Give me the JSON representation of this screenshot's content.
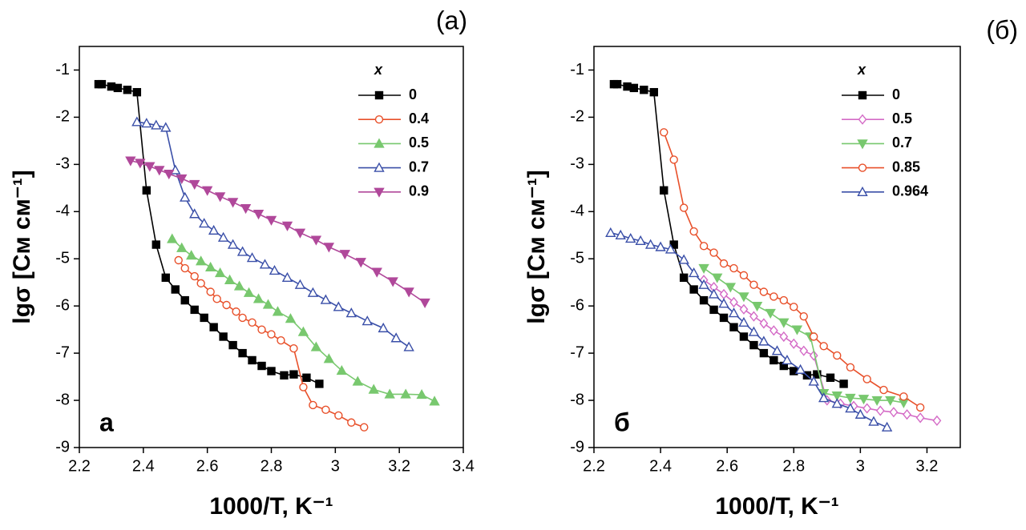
{
  "chart_data": [
    {
      "type": "line",
      "title": "(a)",
      "corner_label": "а",
      "xlabel": "1000/T, K⁻¹",
      "ylabel": "lgσ [См см⁻¹]",
      "legend_title": "x",
      "xlim": [
        2.2,
        3.4
      ],
      "ylim": [
        -9,
        -0.5
      ],
      "xticks": [
        2.2,
        2.4,
        2.6,
        2.8,
        3.0,
        3.2,
        3.4
      ],
      "yticks": [
        -9,
        -8,
        -7,
        -6,
        -5,
        -4,
        -3,
        -2,
        -1
      ],
      "series": [
        {
          "name": "0",
          "color": "#000000",
          "marker": "square",
          "filled": true,
          "x": [
            2.26,
            2.27,
            2.3,
            2.32,
            2.35,
            2.38,
            2.41,
            2.44,
            2.47,
            2.5,
            2.53,
            2.56,
            2.59,
            2.62,
            2.65,
            2.68,
            2.71,
            2.74,
            2.77,
            2.8,
            2.84,
            2.87,
            2.91,
            2.95
          ],
          "values": [
            -1.3,
            -1.3,
            -1.35,
            -1.38,
            -1.42,
            -1.47,
            -3.55,
            -4.7,
            -5.4,
            -5.65,
            -5.88,
            -6.08,
            -6.25,
            -6.45,
            -6.65,
            -6.83,
            -7.0,
            -7.15,
            -7.27,
            -7.38,
            -7.47,
            -7.45,
            -7.52,
            -7.65
          ]
        },
        {
          "name": "0.4",
          "color": "#e8502a",
          "marker": "circle",
          "filled": false,
          "x": [
            2.51,
            2.53,
            2.56,
            2.58,
            2.61,
            2.63,
            2.66,
            2.69,
            2.71,
            2.74,
            2.77,
            2.8,
            2.83,
            2.87,
            2.9,
            2.93,
            2.97,
            3.01,
            3.05,
            3.09
          ],
          "values": [
            -5.03,
            -5.2,
            -5.37,
            -5.52,
            -5.7,
            -5.85,
            -5.98,
            -6.12,
            -6.25,
            -6.35,
            -6.5,
            -6.6,
            -6.73,
            -6.9,
            -7.72,
            -8.1,
            -8.2,
            -8.32,
            -8.47,
            -8.57
          ]
        },
        {
          "name": "0.5",
          "color": "#78c86e",
          "marker": "triangle",
          "filled": true,
          "x": [
            2.49,
            2.52,
            2.55,
            2.58,
            2.61,
            2.64,
            2.67,
            2.7,
            2.73,
            2.76,
            2.79,
            2.82,
            2.86,
            2.9,
            2.94,
            2.98,
            3.02,
            3.07,
            3.12,
            3.17,
            3.22,
            3.27,
            3.31
          ],
          "values": [
            -4.58,
            -4.77,
            -4.93,
            -5.05,
            -5.18,
            -5.3,
            -5.45,
            -5.58,
            -5.72,
            -5.85,
            -5.97,
            -6.12,
            -6.27,
            -6.55,
            -6.87,
            -7.12,
            -7.37,
            -7.6,
            -7.77,
            -7.87,
            -7.87,
            -7.88,
            -8.02
          ]
        },
        {
          "name": "0.7",
          "color": "#3a4fa8",
          "marker": "triangle",
          "filled": false,
          "x": [
            2.38,
            2.41,
            2.44,
            2.47,
            2.5,
            2.53,
            2.56,
            2.59,
            2.62,
            2.65,
            2.68,
            2.71,
            2.74,
            2.78,
            2.81,
            2.85,
            2.89,
            2.93,
            2.97,
            3.01,
            3.05,
            3.1,
            3.15,
            3.19,
            3.23
          ],
          "values": [
            -2.1,
            -2.13,
            -2.17,
            -2.22,
            -3.12,
            -3.7,
            -4.05,
            -4.25,
            -4.4,
            -4.55,
            -4.7,
            -4.85,
            -4.98,
            -5.12,
            -5.25,
            -5.4,
            -5.55,
            -5.72,
            -5.87,
            -6.02,
            -6.15,
            -6.32,
            -6.47,
            -6.68,
            -6.87
          ]
        },
        {
          "name": "0.9",
          "color": "#b0489a",
          "marker": "triangle-down",
          "filled": true,
          "x": [
            2.36,
            2.39,
            2.42,
            2.45,
            2.48,
            2.52,
            2.56,
            2.6,
            2.64,
            2.68,
            2.72,
            2.76,
            2.8,
            2.85,
            2.89,
            2.94,
            2.98,
            3.03,
            3.08,
            3.13,
            3.18,
            3.23,
            3.28
          ],
          "values": [
            -2.92,
            -2.97,
            -3.04,
            -3.12,
            -3.2,
            -3.3,
            -3.42,
            -3.55,
            -3.68,
            -3.8,
            -3.93,
            -4.05,
            -4.18,
            -4.3,
            -4.45,
            -4.6,
            -4.75,
            -4.9,
            -5.07,
            -5.28,
            -5.48,
            -5.7,
            -5.93
          ]
        }
      ]
    },
    {
      "type": "line",
      "title": "(б)",
      "corner_label": "б",
      "xlabel": "1000/T, K⁻¹",
      "ylabel": "lgσ [См см⁻¹]",
      "legend_title": "x",
      "xlim": [
        2.2,
        3.3
      ],
      "ylim": [
        -9,
        -0.5
      ],
      "xticks": [
        2.2,
        2.4,
        2.6,
        2.8,
        3.0,
        3.2
      ],
      "yticks": [
        -9,
        -8,
        -7,
        -6,
        -5,
        -4,
        -3,
        -2,
        -1
      ],
      "series": [
        {
          "name": "0",
          "color": "#000000",
          "marker": "square",
          "filled": true,
          "x": [
            2.26,
            2.27,
            2.3,
            2.32,
            2.35,
            2.38,
            2.41,
            2.44,
            2.47,
            2.5,
            2.53,
            2.56,
            2.59,
            2.62,
            2.65,
            2.68,
            2.71,
            2.74,
            2.77,
            2.8,
            2.84,
            2.87,
            2.91,
            2.95
          ],
          "values": [
            -1.3,
            -1.3,
            -1.35,
            -1.38,
            -1.42,
            -1.47,
            -3.55,
            -4.7,
            -5.4,
            -5.65,
            -5.88,
            -6.08,
            -6.25,
            -6.45,
            -6.65,
            -6.83,
            -7.0,
            -7.15,
            -7.27,
            -7.38,
            -7.47,
            -7.45,
            -7.52,
            -7.65
          ]
        },
        {
          "name": "0.5",
          "color": "#d46bc6",
          "marker": "diamond",
          "filled": false,
          "x": [
            2.53,
            2.56,
            2.59,
            2.62,
            2.65,
            2.68,
            2.71,
            2.74,
            2.77,
            2.8,
            2.83,
            2.86,
            2.9,
            2.94,
            2.98,
            3.02,
            3.06,
            3.1,
            3.14,
            3.18,
            3.23
          ],
          "values": [
            -5.45,
            -5.6,
            -5.75,
            -5.92,
            -6.07,
            -6.22,
            -6.37,
            -6.52,
            -6.65,
            -6.8,
            -6.95,
            -7.05,
            -8.0,
            -8.07,
            -8.12,
            -8.17,
            -8.22,
            -8.25,
            -8.3,
            -8.37,
            -8.43
          ]
        },
        {
          "name": "0.7",
          "color": "#78c86e",
          "marker": "triangle-down",
          "filled": true,
          "x": [
            2.53,
            2.57,
            2.61,
            2.65,
            2.69,
            2.73,
            2.77,
            2.81,
            2.85,
            2.89,
            2.93,
            2.97,
            3.01,
            3.05,
            3.09,
            3.13
          ],
          "values": [
            -5.2,
            -5.4,
            -5.6,
            -5.8,
            -6.0,
            -6.15,
            -6.35,
            -6.5,
            -6.65,
            -7.85,
            -7.9,
            -7.95,
            -7.97,
            -8.0,
            -8.0,
            -8.05
          ]
        },
        {
          "name": "0.85",
          "color": "#e8502a",
          "marker": "circle",
          "filled": false,
          "x": [
            2.41,
            2.44,
            2.47,
            2.5,
            2.53,
            2.56,
            2.59,
            2.62,
            2.65,
            2.68,
            2.71,
            2.74,
            2.77,
            2.8,
            2.83,
            2.86,
            2.89,
            2.93,
            2.97,
            3.02,
            3.07,
            3.13,
            3.18
          ],
          "values": [
            -2.32,
            -2.9,
            -3.92,
            -4.42,
            -4.73,
            -4.87,
            -5.1,
            -5.2,
            -5.35,
            -5.55,
            -5.7,
            -5.8,
            -5.88,
            -6.02,
            -6.22,
            -6.65,
            -6.85,
            -7.05,
            -7.3,
            -7.55,
            -7.78,
            -7.92,
            -8.15
          ]
        },
        {
          "name": "0.964",
          "color": "#3a4fa8",
          "marker": "triangle",
          "filled": false,
          "x": [
            2.25,
            2.28,
            2.31,
            2.34,
            2.37,
            2.4,
            2.43,
            2.47,
            2.5,
            2.53,
            2.56,
            2.59,
            2.62,
            2.65,
            2.68,
            2.71,
            2.75,
            2.78,
            2.82,
            2.86,
            2.89,
            2.93,
            2.97,
            3.0,
            3.04,
            3.08
          ],
          "values": [
            -4.45,
            -4.5,
            -4.57,
            -4.62,
            -4.7,
            -4.75,
            -4.8,
            -5.02,
            -5.3,
            -5.55,
            -5.75,
            -5.95,
            -6.15,
            -6.35,
            -6.55,
            -6.75,
            -6.95,
            -7.15,
            -7.35,
            -7.6,
            -7.95,
            -8.07,
            -8.17,
            -8.3,
            -8.45,
            -8.57
          ]
        }
      ]
    }
  ]
}
